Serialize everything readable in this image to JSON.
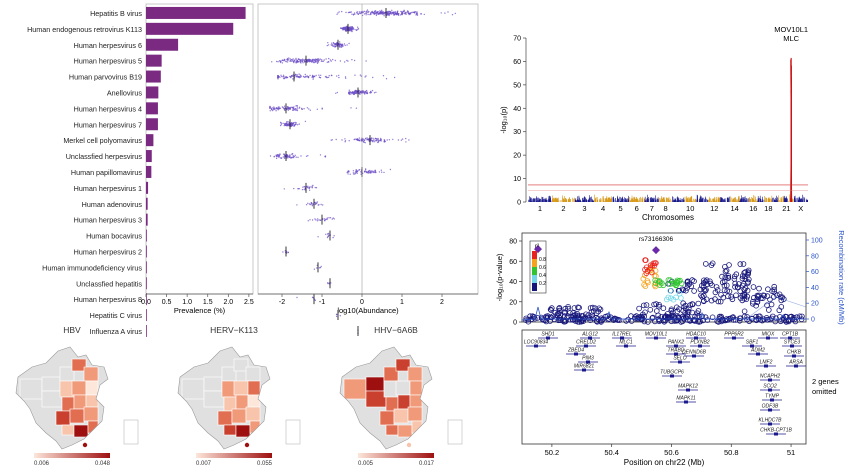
{
  "colors": {
    "purple": "#7b2a82",
    "violet": "#6d4fc7",
    "manhattan_blue": "#1a1a8c",
    "manhattan_gold": "#d79a1a",
    "threshold_red": "#d03030",
    "hit_red": "#cc1111",
    "map_low": "#fbe3d6",
    "map_high": "#9e1010",
    "map_nodata": "#e0e0e0",
    "ld_red": "#e8231f",
    "ld_orange": "#f5a31e",
    "ld_green": "#31c431",
    "ld_cyan": "#75d8e8",
    "ld_navy": "#15157a",
    "recomb_blue": "#2b55c8"
  },
  "chart_data": [
    {
      "id": "prevalence",
      "type": "bar",
      "orientation": "horizontal",
      "categories": [
        "Hepatitis B virus",
        "Human endogenous retrovirus K113",
        "Human herpesvirus 6",
        "Human herpesvirus 5",
        "Human parvovirus B19",
        "Anellovirus",
        "Human herpesvirus 4",
        "Human herpesvirus 7",
        "Merkel cell polyomavirus",
        "Unclassfied herpesvirus",
        "Human papillomavirus",
        "Human herpesvirus 1",
        "Human adenovirus",
        "Human herpesvirus 3",
        "Human bocavirus",
        "Human herpesvirus 2",
        "Human immunodeficiency virus",
        "Unclassfied hepatitis",
        "Human herpesvirus 8",
        "Hepatitis C virus",
        "Influenza A virus"
      ],
      "values": [
        2.42,
        2.12,
        0.78,
        0.38,
        0.36,
        0.3,
        0.29,
        0.29,
        0.18,
        0.14,
        0.13,
        0.05,
        0.04,
        0.04,
        0.02,
        0.02,
        0.01,
        0.01,
        0.01,
        0.01,
        0.005
      ],
      "xlabel": "Prevalence (%)",
      "xlim": [
        0,
        2.6
      ],
      "xticks": [
        "0.0",
        "0.5",
        "1.0",
        "1.5",
        "2.0",
        "2.5"
      ]
    },
    {
      "id": "abundance",
      "type": "scatter",
      "xlabel": "log10(Abundance)",
      "xlim": [
        -2.6,
        2.9
      ],
      "xticks": [
        "-2",
        "-1",
        "0",
        "1",
        "2"
      ],
      "rows": [
        {
          "name": "Hepatitis B virus",
          "min": -0.7,
          "max": 2.6,
          "center": 0.6,
          "n": 260
        },
        {
          "name": "Human endogenous retrovirus K113",
          "min": -0.55,
          "max": -0.05,
          "center": -0.35,
          "n": 160
        },
        {
          "name": "Human herpesvirus 6",
          "min": -0.9,
          "max": -0.3,
          "center": -0.6,
          "n": 80
        },
        {
          "name": "Human herpesvirus 5",
          "min": -2.3,
          "max": 0.2,
          "center": -1.4,
          "n": 160
        },
        {
          "name": "Human parvovirus B19",
          "min": -2.1,
          "max": 1.8,
          "center": -1.7,
          "n": 120
        },
        {
          "name": "Anellovirus",
          "min": -0.7,
          "max": 0.35,
          "center": -0.1,
          "n": 110
        },
        {
          "name": "Human herpesvirus 4",
          "min": -2.3,
          "max": 0.2,
          "center": -1.9,
          "n": 100
        },
        {
          "name": "Human herpesvirus 7",
          "min": -2.1,
          "max": -1.4,
          "center": -1.8,
          "n": 90
        },
        {
          "name": "Merkel cell polyomavirus",
          "min": -0.8,
          "max": 1.2,
          "center": 0.2,
          "n": 110
        },
        {
          "name": "Unclassfied herpesvirus",
          "min": -2.3,
          "max": -0.9,
          "center": -1.9,
          "n": 80
        },
        {
          "name": "Human papillomavirus",
          "min": -0.9,
          "max": 0.8,
          "center": 0.0,
          "n": 70
        },
        {
          "name": "Human herpesvirus 1",
          "min": -2.0,
          "max": -0.8,
          "center": -1.4,
          "n": 30
        },
        {
          "name": "Human adenovirus",
          "min": -1.7,
          "max": -0.9,
          "center": -1.2,
          "n": 25
        },
        {
          "name": "Human herpesvirus 3",
          "min": -1.7,
          "max": -0.5,
          "center": -1.0,
          "n": 25
        },
        {
          "name": "Human bocavirus",
          "min": -1.3,
          "max": -0.6,
          "center": -0.8,
          "n": 12
        },
        {
          "name": "Human herpesvirus 2",
          "min": -2.1,
          "max": -1.7,
          "center": -1.9,
          "n": 8
        },
        {
          "name": "Human immunodeficiency virus",
          "min": -1.3,
          "max": -0.9,
          "center": -1.1,
          "n": 6
        },
        {
          "name": "Unclassfied hepatitis",
          "min": -0.95,
          "max": -0.7,
          "center": -0.8,
          "n": 5
        },
        {
          "name": "Human herpesvirus 8",
          "min": -1.8,
          "max": -0.7,
          "center": -1.2,
          "n": 5
        },
        {
          "name": "Hepatitis C virus",
          "min": -0.7,
          "max": -0.3,
          "center": -0.6,
          "n": 4
        },
        {
          "name": "Influenza A virus",
          "min": -0.1,
          "max": 0.0,
          "center": -0.1,
          "n": 2
        }
      ]
    },
    {
      "id": "maps",
      "type": "heatmap",
      "maps": [
        {
          "title": "HBV",
          "legend_min": "0.006",
          "legend_max": "0.048"
        },
        {
          "title": "HERV−K113",
          "legend_min": "0.007",
          "legend_max": "0.055"
        },
        {
          "title": "HHV−6A6B",
          "legend_min": "0.005",
          "legend_max": "0.017"
        }
      ]
    },
    {
      "id": "manhattan",
      "type": "scatter",
      "ylabel": "-log₁₀(p)",
      "xlabel": "Chromosomes",
      "ylim": [
        0,
        70
      ],
      "yticks": [
        "0",
        "10",
        "20",
        "30",
        "40",
        "50",
        "60",
        "70"
      ],
      "xticks": [
        "1",
        "2",
        "3",
        "4",
        "5",
        "6",
        "7",
        "8",
        "10",
        "12",
        "14",
        "16",
        "18",
        "21",
        "X"
      ],
      "threshold": 7.3,
      "hit_label_gene": "MOV10L1",
      "hit_label_sub": "MLC",
      "hit_peak": 61.5
    },
    {
      "id": "locuszoom",
      "type": "scatter",
      "ylabel": "-log₁₀(p-value)",
      "y2label": "Recombination rate (cM/Mb)",
      "ylim": [
        0,
        80
      ],
      "yticks": [
        "0",
        "20",
        "40",
        "60",
        "80"
      ],
      "y2ticks": [
        "0",
        "20",
        "40",
        "60",
        "80",
        "100"
      ],
      "lead_snp": "rs73166306",
      "legend_title": "r²",
      "legend_values": [
        "0.8",
        "0.6",
        "0.4",
        "0.2"
      ],
      "xlabel": "Position on chr22 (Mb)",
      "xticks": [
        "50.2",
        "50.4",
        "50.6",
        "50.8",
        "51"
      ],
      "omitted_note_line1": "2 genes",
      "omitted_note_line2": "omitted",
      "genes": [
        "SHD1",
        "LOC90834",
        "ALG12",
        "CRELD2",
        "ZBED4",
        "PIM3",
        "MIR6821",
        "IL17REL",
        "MLC1",
        "MOV10L1",
        "PANX2",
        "TRABD",
        "SELO",
        "TUBGCP6",
        "HDAC10",
        "MAPK12",
        "MAPK11",
        "PLXNB2",
        "DENND6B",
        "PPP6R2",
        "SBF1",
        "ADM2",
        "MIOX",
        "LMF2",
        "NCAPH2",
        "SCO2",
        "TYMP",
        "ODF3B",
        "KLHDC7B",
        "CHKB-CPT1B",
        "CPT1B",
        "SYCE3",
        "CHKB",
        "ARSA"
      ]
    }
  ]
}
